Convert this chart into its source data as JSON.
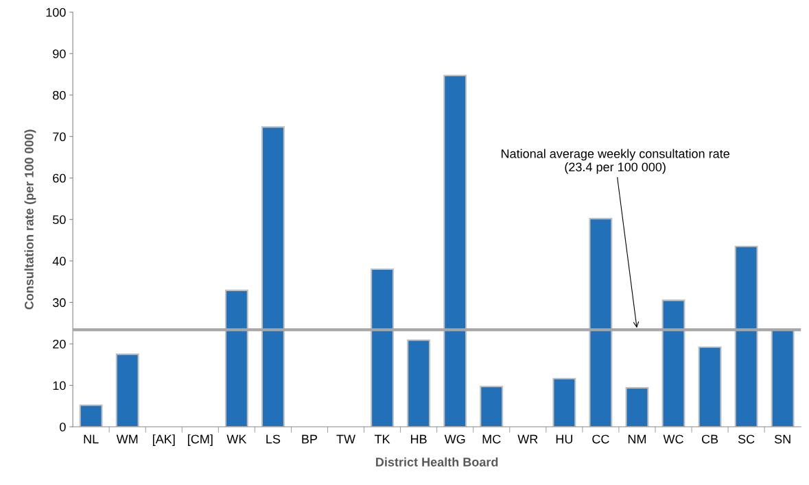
{
  "chart_data": {
    "type": "bar",
    "xlabel": "District Health Board",
    "ylabel": "Consultation rate (per 100 000)",
    "categories": [
      "NL",
      "WM",
      "[AK]",
      "[CM]",
      "WK",
      "LS",
      "BP",
      "TW",
      "TK",
      "HB",
      "WG",
      "MC",
      "WR",
      "HU",
      "CC",
      "NM",
      "WC",
      "CB",
      "SC",
      "SN"
    ],
    "values": [
      5.2,
      17.5,
      null,
      null,
      32.9,
      72.3,
      null,
      null,
      38.0,
      20.9,
      84.7,
      9.7,
      null,
      11.6,
      50.2,
      9.4,
      30.5,
      19.2,
      43.5,
      23.3
    ],
    "color": "#2270b8",
    "ylim": [
      0,
      100
    ],
    "yticks": [
      0,
      10,
      20,
      30,
      40,
      50,
      60,
      70,
      80,
      90,
      100
    ],
    "grid": false,
    "ref_lines": [
      {
        "axis": "y",
        "value": 23.4,
        "color": "#a6a6a6"
      }
    ],
    "annotations": [
      {
        "text": "National average weekly consultation rate\n(23.4 per 100 000)",
        "x": "NM",
        "y": 23.4
      }
    ]
  }
}
